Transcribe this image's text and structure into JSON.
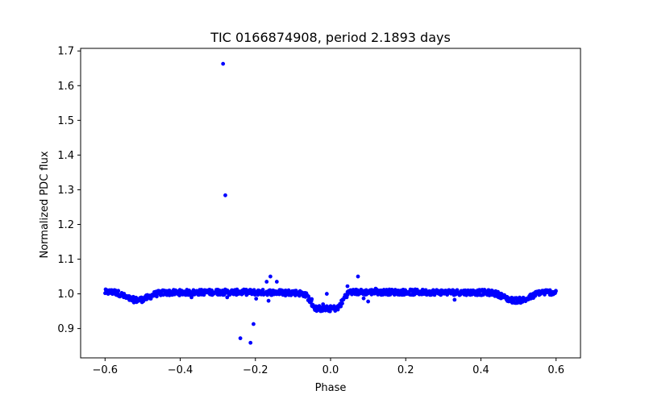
{
  "chart_data": {
    "type": "scatter",
    "title": "TIC 0166874908, period 2.1893 days",
    "xlabel": "Phase",
    "ylabel": "Normalized PDC flux",
    "xlim": [
      -0.665,
      0.665
    ],
    "ylim": [
      0.8155,
      1.7075
    ],
    "xticks": [
      -0.6,
      -0.4,
      -0.2,
      0.0,
      0.2,
      0.4,
      0.6
    ],
    "xtick_labels": [
      "−0.6",
      "−0.4",
      "−0.2",
      "0.0",
      "0.2",
      "0.4",
      "0.6"
    ],
    "yticks": [
      0.9,
      1.0,
      1.1,
      1.2,
      1.3,
      1.4,
      1.5,
      1.6,
      1.7
    ],
    "ytick_labels": [
      "0.9",
      "1.0",
      "1.1",
      "1.2",
      "1.3",
      "1.4",
      "1.5",
      "1.6",
      "1.7"
    ],
    "grid": false,
    "legend": "none",
    "marker_color": "#0000ff",
    "series": [
      {
        "baseline_profile": [
          [
            -0.6,
            1.005
          ],
          [
            -0.575,
            1.005
          ],
          [
            -0.56,
            1.0
          ],
          [
            -0.545,
            0.99
          ],
          [
            -0.53,
            0.984
          ],
          [
            -0.515,
            0.982
          ],
          [
            -0.5,
            0.984
          ],
          [
            -0.485,
            0.99
          ],
          [
            -0.47,
            0.998
          ],
          [
            -0.45,
            1.003
          ],
          [
            -0.3,
            1.005
          ],
          [
            -0.1,
            1.004
          ],
          [
            -0.07,
            1.0
          ],
          [
            -0.06,
            0.99
          ],
          [
            -0.05,
            0.972
          ],
          [
            -0.04,
            0.958
          ],
          [
            -0.02,
            0.957
          ],
          [
            0.0,
            0.957
          ],
          [
            0.02,
            0.959
          ],
          [
            0.03,
            0.975
          ],
          [
            0.04,
            0.995
          ],
          [
            0.05,
            1.005
          ],
          [
            0.2,
            1.005
          ],
          [
            0.4,
            1.004
          ],
          [
            0.43,
            1.003
          ],
          [
            0.45,
            0.997
          ],
          [
            0.465,
            0.988
          ],
          [
            0.48,
            0.982
          ],
          [
            0.5,
            0.981
          ],
          [
            0.52,
            0.984
          ],
          [
            0.54,
            0.995
          ],
          [
            0.555,
            1.004
          ],
          [
            0.6,
            1.005
          ]
        ],
        "outliers": [
          {
            "x": -0.286,
            "y": 1.663
          },
          {
            "x": -0.28,
            "y": 1.284
          },
          {
            "x": -0.24,
            "y": 0.872
          },
          {
            "x": -0.205,
            "y": 0.913
          },
          {
            "x": -0.213,
            "y": 0.859
          },
          {
            "x": -0.17,
            "y": 1.035
          },
          {
            "x": -0.16,
            "y": 1.05
          },
          {
            "x": -0.143,
            "y": 1.035
          },
          {
            "x": -0.198,
            "y": 0.986
          },
          {
            "x": -0.165,
            "y": 0.98
          },
          {
            "x": -0.275,
            "y": 0.99
          },
          {
            "x": -0.01,
            "y": 1.0
          },
          {
            "x": 0.045,
            "y": 1.022
          },
          {
            "x": 0.073,
            "y": 1.05
          },
          {
            "x": 0.088,
            "y": 0.987
          },
          {
            "x": 0.1,
            "y": 0.978
          },
          {
            "x": -0.37,
            "y": 0.99
          },
          {
            "x": 0.33,
            "y": 0.983
          },
          {
            "x": 0.22,
            "y": 0.997
          },
          {
            "x": -0.05,
            "y": 0.985
          },
          {
            "x": 0.01,
            "y": 0.963
          },
          {
            "x": -0.02,
            "y": 0.97
          },
          {
            "x": 0.03,
            "y": 0.98
          },
          {
            "x": -0.13,
            "y": 1.01
          },
          {
            "x": -0.12,
            "y": 0.995
          },
          {
            "x": 0.12,
            "y": 1.015
          },
          {
            "x": -0.3,
            "y": 1.012
          }
        ]
      }
    ]
  }
}
